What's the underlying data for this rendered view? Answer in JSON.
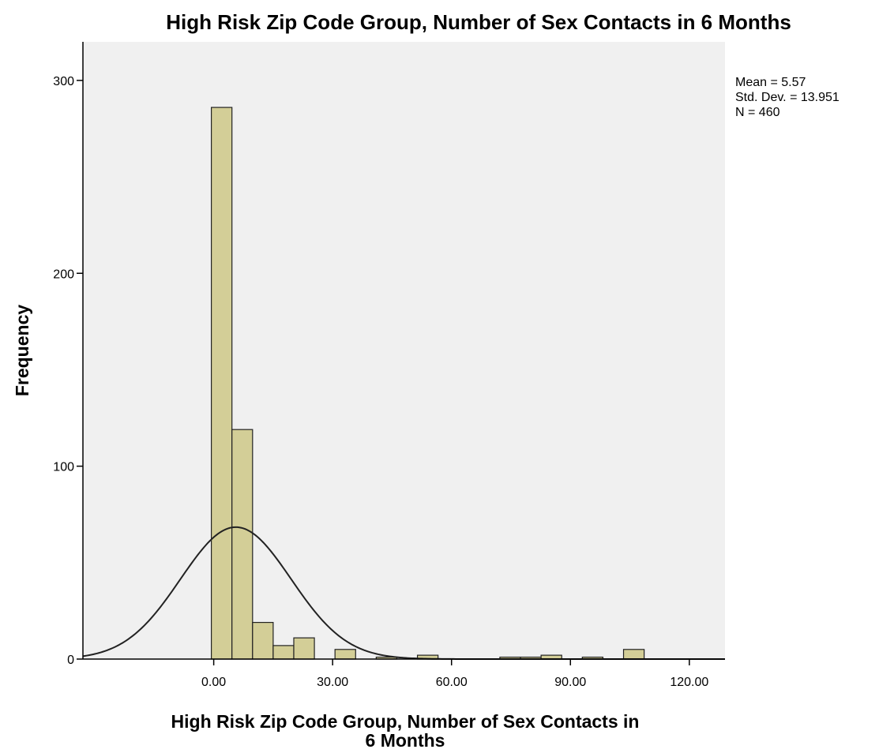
{
  "chart_data": {
    "type": "bar",
    "title": "High Risk Zip Code Group, Number of Sex Contacts in 6 Months",
    "xlabel_lines": [
      "High Risk Zip Code Group, Number of Sex Contacts in",
      "6 Months"
    ],
    "ylabel": "Frequency",
    "xlim": [
      -33,
      129
    ],
    "ylim": [
      0,
      320
    ],
    "x_ticks": [
      0,
      30,
      60,
      90,
      120
    ],
    "x_tick_labels": [
      "0.00",
      "30.00",
      "60.00",
      "90.00",
      "120.00"
    ],
    "y_ticks": [
      0,
      100,
      200,
      300
    ],
    "y_tick_labels": [
      "0",
      "100",
      "200",
      "300"
    ],
    "bin_width": 5.2,
    "bins": [
      {
        "start": -0.6,
        "count": 286
      },
      {
        "start": 4.6,
        "count": 119
      },
      {
        "start": 9.8,
        "count": 19
      },
      {
        "start": 15.0,
        "count": 7
      },
      {
        "start": 20.2,
        "count": 11
      },
      {
        "start": 25.4,
        "count": 0
      },
      {
        "start": 30.6,
        "count": 5
      },
      {
        "start": 35.8,
        "count": 0
      },
      {
        "start": 41.0,
        "count": 1
      },
      {
        "start": 46.2,
        "count": 0
      },
      {
        "start": 51.4,
        "count": 2
      },
      {
        "start": 56.6,
        "count": 0
      },
      {
        "start": 61.8,
        "count": 0
      },
      {
        "start": 67.0,
        "count": 0
      },
      {
        "start": 72.2,
        "count": 1
      },
      {
        "start": 77.4,
        "count": 1
      },
      {
        "start": 82.6,
        "count": 2
      },
      {
        "start": 87.8,
        "count": 0
      },
      {
        "start": 93.0,
        "count": 1
      },
      {
        "start": 98.2,
        "count": 0
      },
      {
        "start": 103.4,
        "count": 5
      }
    ],
    "normal_curve": {
      "mean": 5.57,
      "std_dev": 13.951,
      "n": 460
    },
    "stats_lines": [
      "Mean = 5.57",
      "Std. Dev. = 13.951",
      "N = 460"
    ],
    "grid": false,
    "colors": {
      "plot_background": "#f0f0f0",
      "bar_fill": "#d3ce97",
      "bar_stroke": "#222222",
      "curve": "#222222",
      "axis": "#000000"
    }
  }
}
